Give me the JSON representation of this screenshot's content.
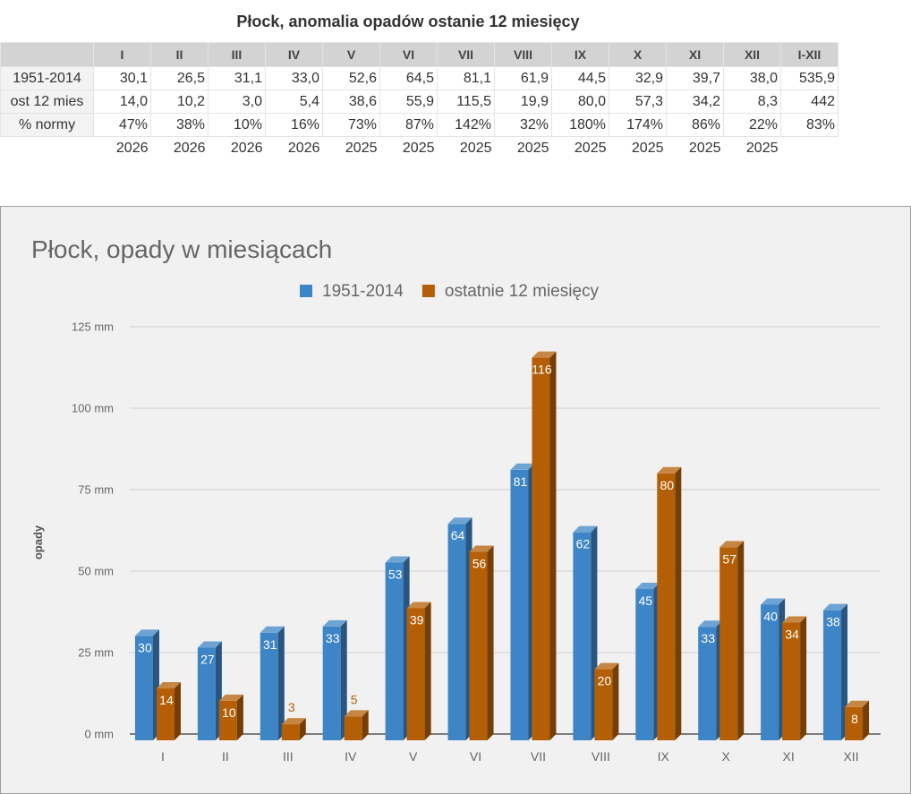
{
  "table": {
    "title": "Płock, anomalia opadów ostanie 12 miesięcy",
    "headers": [
      "",
      "I",
      "II",
      "III",
      "IV",
      "V",
      "VI",
      "VII",
      "VIII",
      "IX",
      "X",
      "XI",
      "XII",
      "I-XII"
    ],
    "rows": [
      {
        "label": "1951-2014",
        "cells": [
          "30,1",
          "26,5",
          "31,1",
          "33,0",
          "52,6",
          "64,5",
          "81,1",
          "61,9",
          "44,5",
          "32,9",
          "39,7",
          "38,0",
          "535,9"
        ]
      },
      {
        "label": "ost 12 mies",
        "cells": [
          "14,0",
          "10,2",
          "3,0",
          "5,4",
          "38,6",
          "55,9",
          "115,5",
          "19,9",
          "80,0",
          "57,3",
          "34,2",
          "8,3",
          "442"
        ]
      },
      {
        "label": "% normy",
        "cells": [
          "47%",
          "38%",
          "10%",
          "16%",
          "73%",
          "87%",
          "142%",
          "32%",
          "180%",
          "174%",
          "86%",
          "22%",
          "83%"
        ]
      }
    ],
    "years": [
      "2026",
      "2026",
      "2026",
      "2026",
      "2025",
      "2025",
      "2025",
      "2025",
      "2025",
      "2025",
      "2025",
      "2025"
    ]
  },
  "chart_data": {
    "type": "bar",
    "title": "Płock, opady w miesiącach",
    "ylabel": "opady",
    "xlabel": "",
    "categories": [
      "I",
      "II",
      "III",
      "IV",
      "V",
      "VI",
      "VII",
      "VIII",
      "IX",
      "X",
      "XI",
      "XII"
    ],
    "ylim": [
      0,
      125
    ],
    "yticks": [
      0,
      25,
      50,
      75,
      100,
      125
    ],
    "ytick_labels": [
      "0 mm",
      "25 mm",
      "50 mm",
      "75 mm",
      "100 mm",
      "125 mm"
    ],
    "grid": true,
    "legend": "top",
    "series": [
      {
        "name": "1951-2014",
        "color": "#3d85c6",
        "values": [
          30.1,
          26.5,
          31.1,
          33.0,
          52.6,
          64.5,
          81.1,
          61.9,
          44.5,
          32.9,
          39.7,
          38.0
        ],
        "labels": [
          "30",
          "27",
          "31",
          "33",
          "53",
          "64",
          "81",
          "62",
          "45",
          "33",
          "40",
          "38"
        ]
      },
      {
        "name": "ostatnie 12 miesięcy",
        "color": "#b45f06",
        "values": [
          14.0,
          10.2,
          3.0,
          5.4,
          38.6,
          55.9,
          115.5,
          19.9,
          80.0,
          57.3,
          34.2,
          8.3
        ],
        "labels": [
          "14",
          "10",
          "3",
          "5",
          "39",
          "56",
          "116",
          "20",
          "80",
          "57",
          "34",
          "8"
        ]
      }
    ]
  }
}
